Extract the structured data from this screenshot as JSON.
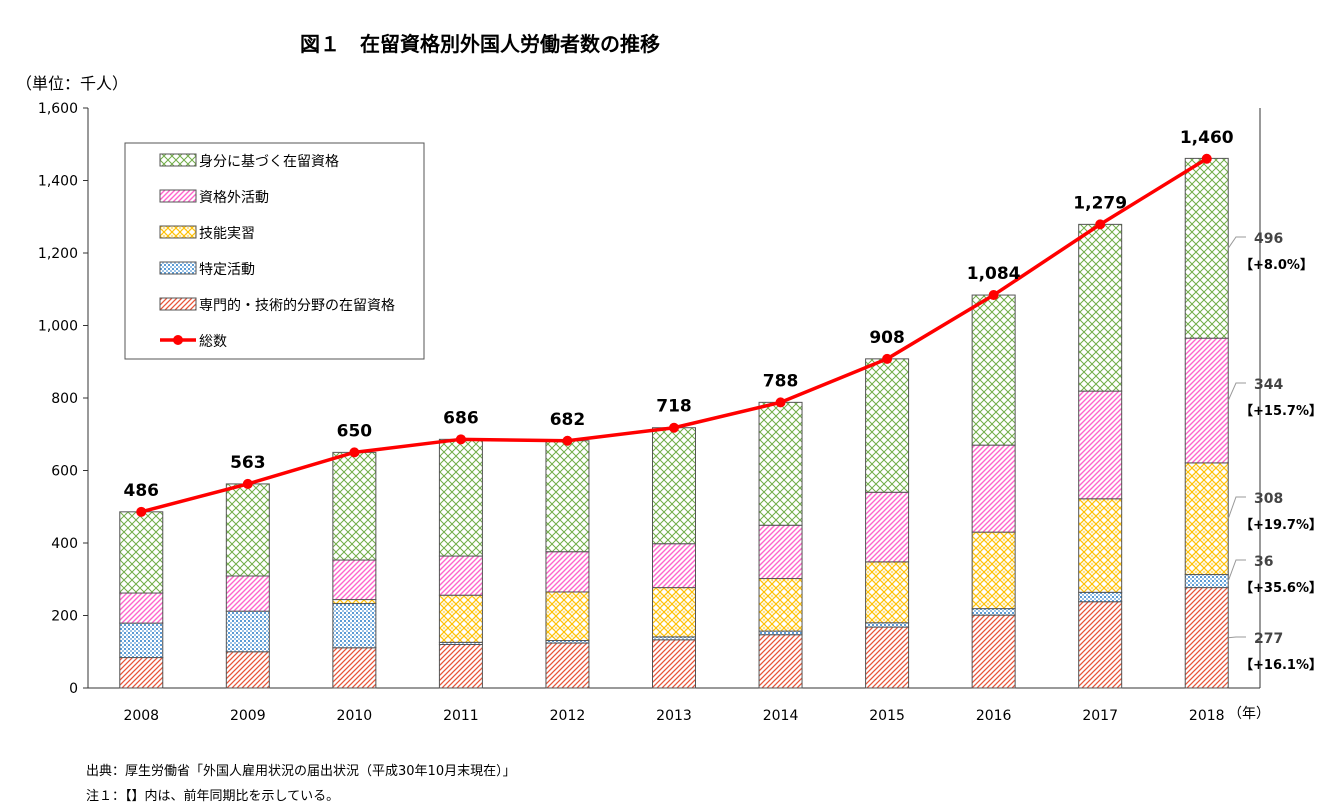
{
  "chart_data": {
    "type": "bar",
    "title": "図１　在留資格別外国人労働者数の推移",
    "unit_label": "（単位：千人）",
    "x_unit": "（年）",
    "categories": [
      "2008",
      "2009",
      "2010",
      "2011",
      "2012",
      "2013",
      "2014",
      "2015",
      "2016",
      "2017",
      "2018"
    ],
    "y_ticks": [
      "0",
      "200",
      "400",
      "600",
      "800",
      "1,000",
      "1,200",
      "1,400",
      "1,600"
    ],
    "ylim": [
      0,
      1600
    ],
    "grid": false,
    "legend_position": "top-left",
    "series": [
      {
        "name": "専門的・技術的分野の在留資格",
        "color": "#e8553a",
        "values": [
          84,
          100,
          111,
          120,
          124,
          133,
          147,
          168,
          201,
          238,
          277
        ]
      },
      {
        "name": "特定活動",
        "color": "#5b9bd5",
        "values": [
          95,
          112,
          122,
          6,
          7,
          8,
          10,
          12,
          18,
          26,
          36
        ]
      },
      {
        "name": "技能実習",
        "color": "#ffc000",
        "values": [
          0,
          0,
          11,
          130,
          134,
          136,
          145,
          168,
          211,
          258,
          308
        ]
      },
      {
        "name": "資格外活動",
        "color": "#ff66cc",
        "values": [
          83,
          97,
          109,
          108,
          111,
          121,
          147,
          192,
          240,
          297,
          344
        ]
      },
      {
        "name": "身分に基づく在留資格",
        "color": "#70ad47",
        "values": [
          224,
          254,
          297,
          322,
          306,
          320,
          339,
          368,
          414,
          460,
          496
        ]
      }
    ],
    "total": {
      "name": "総数",
      "color": "#ff0000",
      "values": [
        486,
        563,
        650,
        686,
        682,
        718,
        788,
        908,
        1084,
        1279,
        1460
      ],
      "labels": [
        "486",
        "563",
        "650",
        "686",
        "682",
        "718",
        "788",
        "908",
        "1,084",
        "1,279",
        "1,460"
      ]
    },
    "annotations": [
      {
        "value": "496",
        "change": "【+8.0%】"
      },
      {
        "value": "344",
        "change": "【+15.7%】"
      },
      {
        "value": "308",
        "change": "【+19.7%】"
      },
      {
        "value": "36",
        "change": "【+35.6%】"
      },
      {
        "value": "277",
        "change": "【+16.1%】"
      }
    ]
  },
  "source": "出典：厚生労働省「外国人雇用状況の届出状況（平成30年10月末現在）」",
  "note": "注１：【】内は、前年同期比を示している。"
}
